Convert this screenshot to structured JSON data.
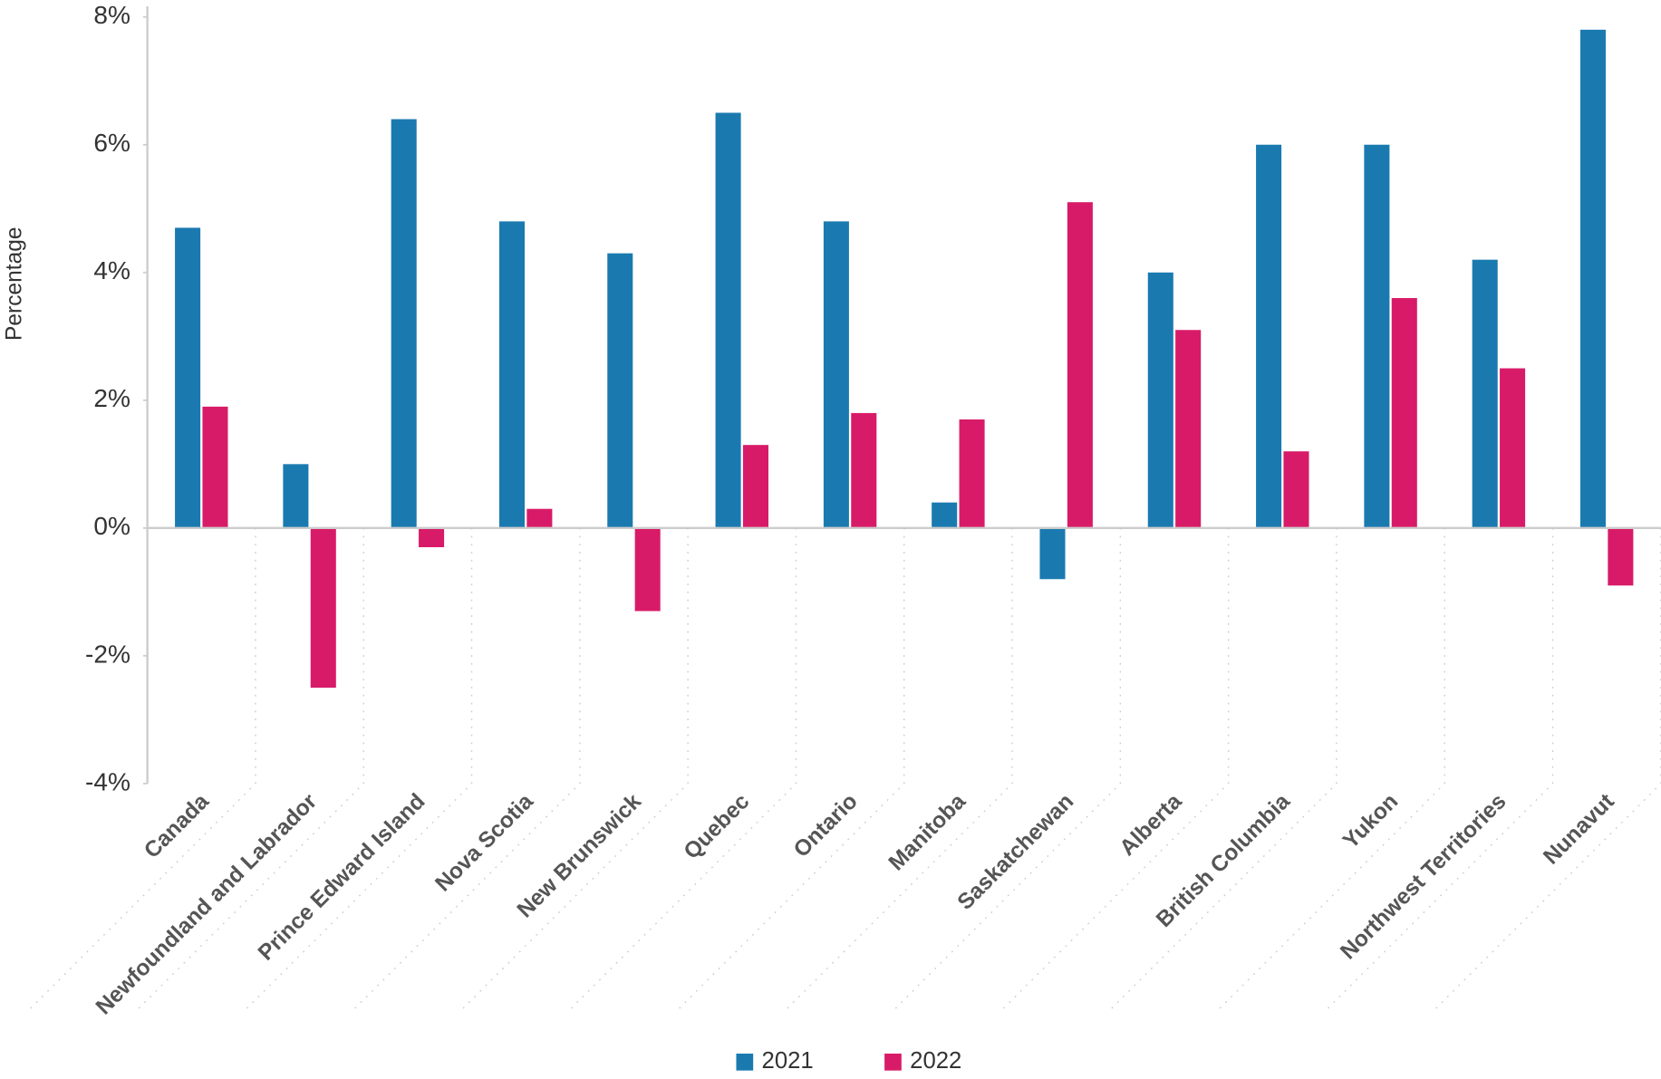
{
  "chart_data": {
    "type": "bar",
    "y_label": "Percentage",
    "categories": [
      "Canada",
      "Newfoundland and Labrador",
      "Prince Edward Island",
      "Nova Scotia",
      "New Brunswick",
      "Quebec",
      "Ontario",
      "Manitoba",
      "Saskatchewan",
      "Alberta",
      "British Columbia",
      "Yukon",
      "Northwest Territories",
      "Nunavut"
    ],
    "series": [
      {
        "name": "2021",
        "color": "#1a7ab0",
        "values": [
          4.7,
          1.0,
          6.4,
          4.8,
          4.3,
          6.5,
          4.8,
          0.4,
          -0.8,
          4.0,
          6.0,
          6.0,
          4.2,
          7.8
        ]
      },
      {
        "name": "2022",
        "color": "#d81b68",
        "values": [
          1.9,
          -2.5,
          -0.3,
          0.3,
          -1.3,
          1.3,
          1.8,
          1.7,
          5.1,
          3.1,
          1.2,
          3.6,
          2.5,
          -0.9
        ]
      }
    ],
    "ylim": [
      -4,
      8
    ],
    "yticks": [
      {
        "value": -4,
        "label": "-4%"
      },
      {
        "value": -2,
        "label": "-2%"
      },
      {
        "value": 0,
        "label": "0%"
      },
      {
        "value": 2,
        "label": "2%"
      },
      {
        "value": 4,
        "label": "4%"
      },
      {
        "value": 6,
        "label": "6%"
      },
      {
        "value": 8,
        "label": "8%"
      }
    ],
    "grid": false,
    "legend": "bottom"
  }
}
